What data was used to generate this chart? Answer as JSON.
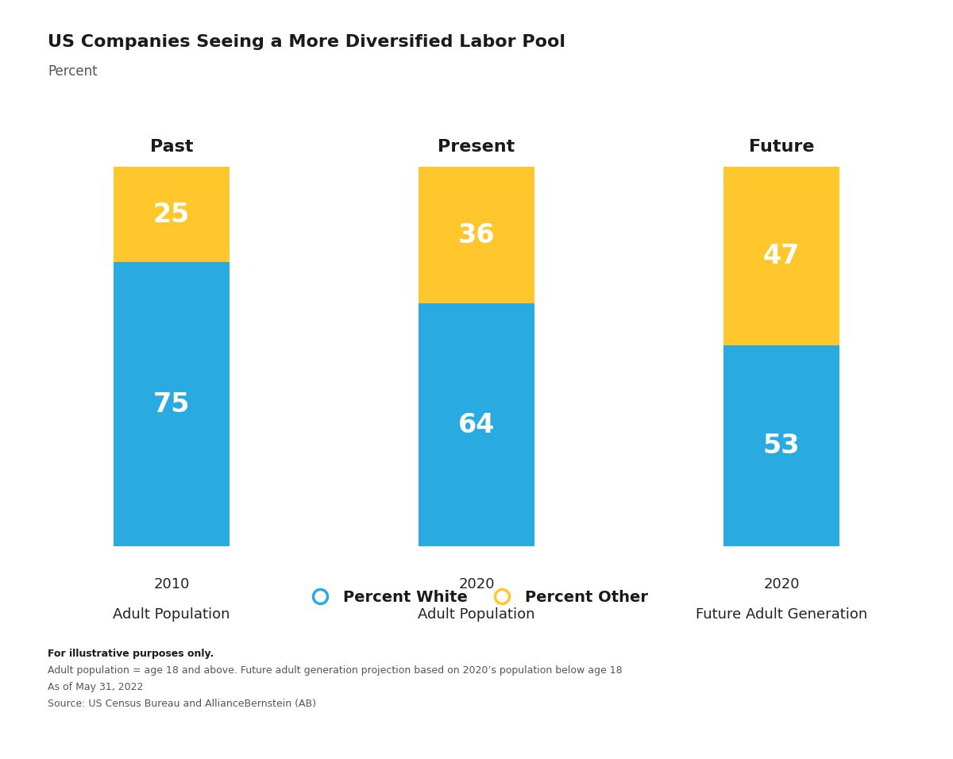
{
  "title": "US Companies Seeing a More Diversified Labor Pool",
  "subtitle": "Percent",
  "panels": [
    "Past",
    "Present",
    "Future"
  ],
  "xlabels_line1": [
    "2010",
    "2020",
    "2020"
  ],
  "xlabels_line2": [
    "Adult Population",
    "Adult Population",
    "Future Adult Generation"
  ],
  "white_values": [
    75,
    64,
    53
  ],
  "other_values": [
    25,
    36,
    47
  ],
  "color_white": "#29ABE2",
  "color_other": "#FFC72C",
  "legend_blue_label": "Percent White",
  "legend_gold_label": "Percent Other",
  "footnote_bold": "For illustrative purposes only.",
  "footnote_lines": [
    "Adult population = age 18 and above. Future adult generation projection based on 2020’s population below age 18",
    "As of May 31, 2022",
    "Source: US Census Bureau and AllianceBernstein (AB)"
  ],
  "background_color": "#FFFFFF",
  "bar_width": 0.55,
  "ylim": [
    0,
    100
  ],
  "title_fontsize": 16,
  "subtitle_fontsize": 12,
  "panel_fontsize": 16,
  "label_fontsize": 24,
  "xlabel_fontsize": 13,
  "legend_fontsize": 14,
  "footnote_bold_fontsize": 9,
  "footnote_fontsize": 9
}
